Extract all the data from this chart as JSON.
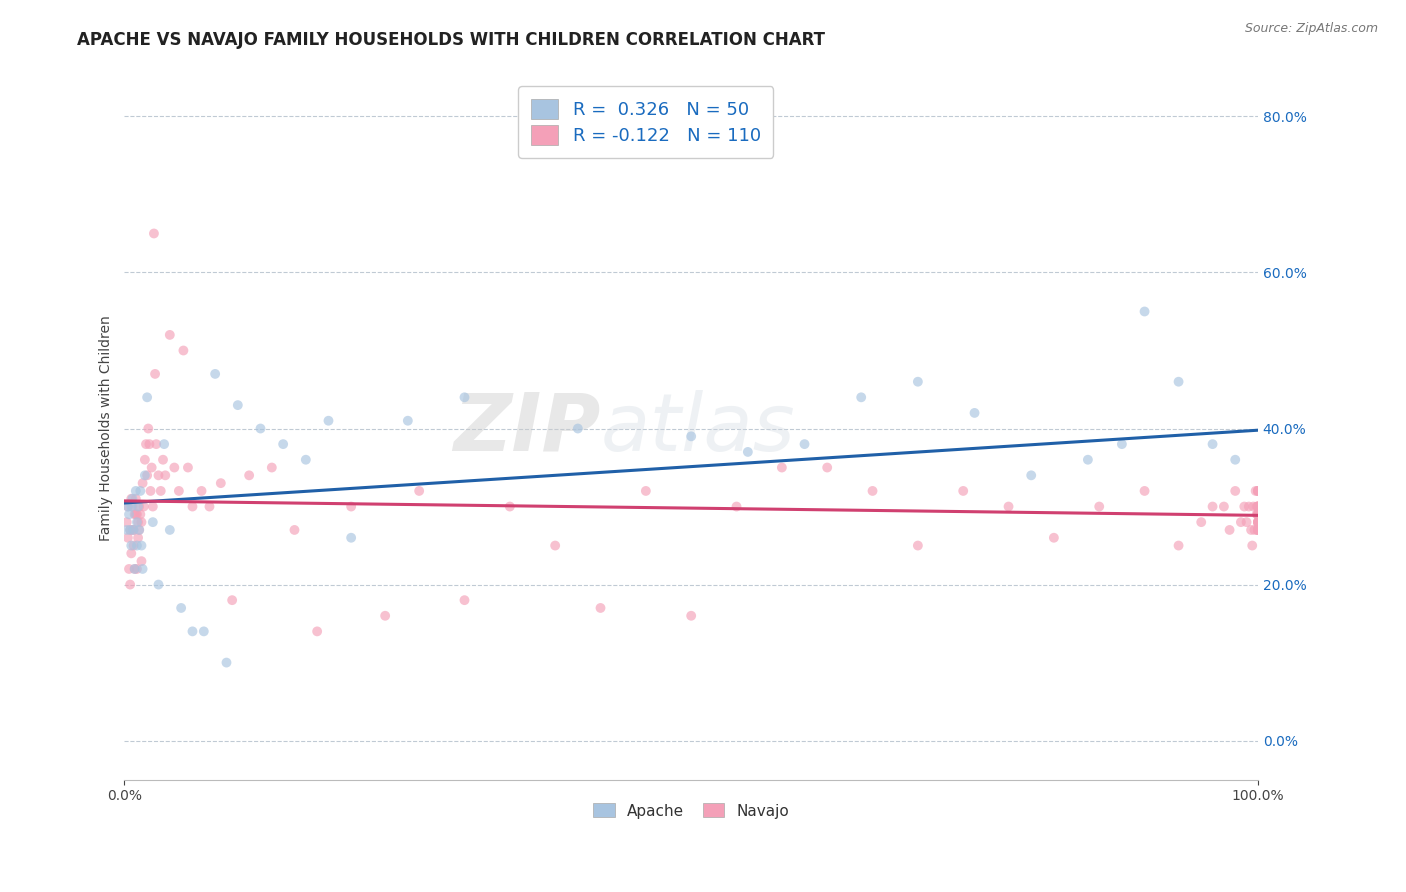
{
  "title": "APACHE VS NAVAJO FAMILY HOUSEHOLDS WITH CHILDREN CORRELATION CHART",
  "source": "Source: ZipAtlas.com",
  "ylabel": "Family Households with Children",
  "watermark": "ZIPatlas",
  "apache_color": "#a8c4e0",
  "apache_line_color": "#2060a8",
  "navajo_color": "#f4a0b8",
  "navajo_line_color": "#d04070",
  "apache_R": 0.326,
  "apache_N": 50,
  "navajo_R": -0.122,
  "navajo_N": 110,
  "apache_x": [
    0.002,
    0.003,
    0.004,
    0.005,
    0.006,
    0.006,
    0.007,
    0.008,
    0.009,
    0.01,
    0.011,
    0.011,
    0.012,
    0.013,
    0.014,
    0.015,
    0.016,
    0.018,
    0.02,
    0.025,
    0.03,
    0.035,
    0.04,
    0.05,
    0.06,
    0.07,
    0.08,
    0.09,
    0.1,
    0.12,
    0.14,
    0.16,
    0.18,
    0.2,
    0.25,
    0.3,
    0.4,
    0.5,
    0.55,
    0.6,
    0.65,
    0.7,
    0.75,
    0.8,
    0.85,
    0.88,
    0.9,
    0.93,
    0.96,
    0.98
  ],
  "apache_y": [
    0.27,
    0.3,
    0.29,
    0.27,
    0.3,
    0.25,
    0.31,
    0.27,
    0.22,
    0.32,
    0.28,
    0.25,
    0.3,
    0.27,
    0.32,
    0.25,
    0.22,
    0.34,
    0.44,
    0.28,
    0.2,
    0.38,
    0.27,
    0.17,
    0.14,
    0.14,
    0.47,
    0.1,
    0.43,
    0.4,
    0.38,
    0.36,
    0.41,
    0.26,
    0.41,
    0.44,
    0.4,
    0.39,
    0.37,
    0.38,
    0.44,
    0.46,
    0.42,
    0.34,
    0.36,
    0.38,
    0.55,
    0.46,
    0.38,
    0.36
  ],
  "navajo_x": [
    0.002,
    0.003,
    0.003,
    0.004,
    0.005,
    0.005,
    0.006,
    0.006,
    0.007,
    0.007,
    0.008,
    0.008,
    0.009,
    0.009,
    0.01,
    0.01,
    0.011,
    0.011,
    0.012,
    0.012,
    0.013,
    0.013,
    0.014,
    0.015,
    0.015,
    0.016,
    0.017,
    0.018,
    0.019,
    0.02,
    0.021,
    0.022,
    0.023,
    0.024,
    0.025,
    0.026,
    0.027,
    0.028,
    0.03,
    0.032,
    0.034,
    0.036,
    0.04,
    0.044,
    0.048,
    0.052,
    0.056,
    0.06,
    0.068,
    0.075,
    0.085,
    0.095,
    0.11,
    0.13,
    0.15,
    0.17,
    0.2,
    0.23,
    0.26,
    0.3,
    0.34,
    0.38,
    0.42,
    0.46,
    0.5,
    0.54,
    0.58,
    0.62,
    0.66,
    0.7,
    0.74,
    0.78,
    0.82,
    0.86,
    0.9,
    0.93,
    0.95,
    0.96,
    0.97,
    0.975,
    0.98,
    0.985,
    0.988,
    0.99,
    0.992,
    0.994,
    0.995,
    0.996,
    0.997,
    0.998,
    0.999,
    0.999,
    1.0,
    1.0,
    1.0,
    1.0,
    1.0,
    1.0,
    1.0,
    1.0,
    1.0,
    1.0,
    1.0,
    1.0,
    1.0,
    1.0,
    1.0,
    1.0,
    1.0,
    1.0
  ],
  "navajo_y": [
    0.28,
    0.26,
    0.3,
    0.22,
    0.2,
    0.27,
    0.24,
    0.31,
    0.3,
    0.27,
    0.27,
    0.25,
    0.29,
    0.22,
    0.31,
    0.29,
    0.29,
    0.22,
    0.28,
    0.26,
    0.3,
    0.27,
    0.29,
    0.28,
    0.23,
    0.33,
    0.3,
    0.36,
    0.38,
    0.34,
    0.4,
    0.38,
    0.32,
    0.35,
    0.3,
    0.65,
    0.47,
    0.38,
    0.34,
    0.32,
    0.36,
    0.34,
    0.52,
    0.35,
    0.32,
    0.5,
    0.35,
    0.3,
    0.32,
    0.3,
    0.33,
    0.18,
    0.34,
    0.35,
    0.27,
    0.14,
    0.3,
    0.16,
    0.32,
    0.18,
    0.3,
    0.25,
    0.17,
    0.32,
    0.16,
    0.3,
    0.35,
    0.35,
    0.32,
    0.25,
    0.32,
    0.3,
    0.26,
    0.3,
    0.32,
    0.25,
    0.28,
    0.3,
    0.3,
    0.27,
    0.32,
    0.28,
    0.3,
    0.28,
    0.3,
    0.27,
    0.25,
    0.3,
    0.27,
    0.32,
    0.29,
    0.3,
    0.28,
    0.27,
    0.32,
    0.29,
    0.3,
    0.28,
    0.27,
    0.3,
    0.32,
    0.29,
    0.28,
    0.3,
    0.27,
    0.32,
    0.29,
    0.3,
    0.28,
    0.27
  ],
  "xlim": [
    0.0,
    1.0
  ],
  "ylim": [
    -0.05,
    0.85
  ],
  "yticks": [
    0.0,
    0.2,
    0.4,
    0.6,
    0.8
  ],
  "ytick_labels_right": [
    "0.0%",
    "20.0%",
    "40.0%",
    "60.0%",
    "80.0%"
  ],
  "xticks": [
    0.0,
    1.0
  ],
  "xtick_labels": [
    "0.0%",
    "100.0%"
  ],
  "grid_color": "#c0cad4",
  "background_color": "#ffffff",
  "legend_text_color": "#1a6bbf",
  "title_fontsize": 12,
  "axis_label_fontsize": 10,
  "tick_fontsize": 10,
  "scatter_size": 50,
  "scatter_alpha": 0.65
}
